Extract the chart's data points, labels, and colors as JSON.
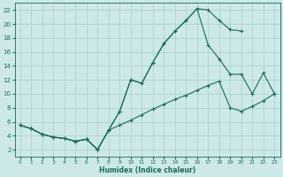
{
  "xlabel": "Humidex (Indice chaleur)",
  "bg_color": "#cce8e8",
  "grid_color": "#aacfcf",
  "line_color": "#1a6b5a",
  "xlim": [
    -0.5,
    23.5
  ],
  "ylim": [
    1.0,
    23.0
  ],
  "xticks": [
    0,
    1,
    2,
    3,
    4,
    5,
    6,
    7,
    8,
    9,
    10,
    11,
    12,
    13,
    14,
    15,
    16,
    17,
    18,
    19,
    20,
    21,
    22,
    23
  ],
  "yticks": [
    2,
    4,
    6,
    8,
    10,
    12,
    14,
    16,
    18,
    20,
    22
  ],
  "line1_x": [
    0,
    1,
    2,
    3,
    4,
    5,
    6,
    7,
    8,
    9,
    10,
    11,
    12,
    13,
    14,
    15,
    16,
    17,
    18,
    19,
    20
  ],
  "line1_y": [
    5.5,
    5.0,
    4.2,
    3.8,
    3.6,
    3.2,
    3.5,
    2.0,
    4.8,
    7.5,
    12.0,
    11.5,
    14.5,
    17.2,
    19.0,
    20.5,
    22.2,
    22.0,
    20.5,
    19.2,
    19.0
  ],
  "line2_x": [
    0,
    1,
    2,
    3,
    4,
    5,
    6,
    7,
    8,
    9,
    10,
    11,
    12,
    13,
    14,
    15,
    16,
    17,
    18,
    19,
    20,
    21,
    22,
    23
  ],
  "line2_y": [
    5.5,
    5.0,
    4.2,
    3.8,
    3.6,
    3.2,
    3.5,
    2.0,
    4.8,
    7.5,
    12.0,
    11.5,
    14.5,
    17.2,
    19.0,
    20.5,
    22.2,
    17.0,
    15.0,
    12.8,
    12.8,
    10.0,
    13.0,
    10.0
  ],
  "line3_x": [
    0,
    1,
    2,
    3,
    4,
    5,
    6,
    7,
    8,
    9,
    10,
    11,
    12,
    13,
    14,
    15,
    16,
    17,
    18,
    19,
    20,
    21,
    22,
    23
  ],
  "line3_y": [
    5.5,
    5.0,
    4.2,
    3.8,
    3.6,
    3.2,
    3.5,
    2.0,
    4.8,
    5.5,
    6.2,
    7.0,
    7.8,
    8.5,
    9.2,
    9.8,
    10.5,
    11.2,
    11.8,
    8.0,
    7.5,
    8.2,
    9.0,
    10.0
  ]
}
